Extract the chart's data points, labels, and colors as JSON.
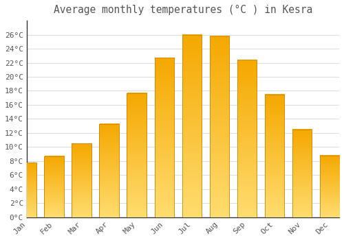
{
  "title": "Average monthly temperatures (°C ) in Kesra",
  "months": [
    "Jan",
    "Feb",
    "Mar",
    "Apr",
    "May",
    "Jun",
    "Jul",
    "Aug",
    "Sep",
    "Oct",
    "Nov",
    "Dec"
  ],
  "values": [
    7.8,
    8.7,
    10.5,
    13.3,
    17.7,
    22.7,
    26.0,
    25.8,
    22.4,
    17.5,
    12.5,
    8.8
  ],
  "bar_color_top": "#F5A800",
  "bar_color_bottom": "#FFDD70",
  "bar_edge_color": "#CC8800",
  "background_color": "#FFFFFF",
  "grid_color": "#DDDDDD",
  "text_color": "#555555",
  "spine_color": "#333333",
  "ylim": [
    0,
    28
  ],
  "yticks": [
    0,
    2,
    4,
    6,
    8,
    10,
    12,
    14,
    16,
    18,
    20,
    22,
    24,
    26
  ],
  "title_fontsize": 10.5,
  "tick_fontsize": 8
}
